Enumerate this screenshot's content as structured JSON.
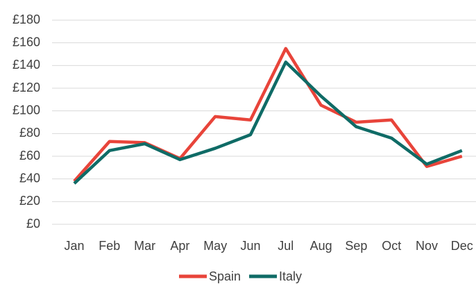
{
  "chart_data": {
    "type": "line",
    "categories": [
      "Jan",
      "Feb",
      "Mar",
      "Apr",
      "May",
      "Jun",
      "Jul",
      "Aug",
      "Sep",
      "Oct",
      "Nov",
      "Dec"
    ],
    "series": [
      {
        "name": "Spain",
        "color": "#e8443a",
        "values": [
          38,
          73,
          72,
          58,
          95,
          92,
          155,
          105,
          90,
          92,
          51,
          60
        ]
      },
      {
        "name": "Italy",
        "color": "#0f6b66",
        "values": [
          36,
          65,
          71,
          57,
          67,
          79,
          143,
          113,
          86,
          76,
          53,
          65
        ]
      }
    ],
    "ylim": [
      0,
      180
    ],
    "yticks": [
      {
        "value": 0,
        "label": "£0"
      },
      {
        "value": 20,
        "label": "£20"
      },
      {
        "value": 40,
        "label": "£40"
      },
      {
        "value": 60,
        "label": "£60"
      },
      {
        "value": 80,
        "label": "£80"
      },
      {
        "value": 100,
        "label": "£100"
      },
      {
        "value": 120,
        "label": "£120"
      },
      {
        "value": 140,
        "label": "£140"
      },
      {
        "value": 160,
        "label": "£160"
      },
      {
        "value": 180,
        "label": "£180"
      }
    ],
    "grid": true,
    "legend": "bottom"
  }
}
